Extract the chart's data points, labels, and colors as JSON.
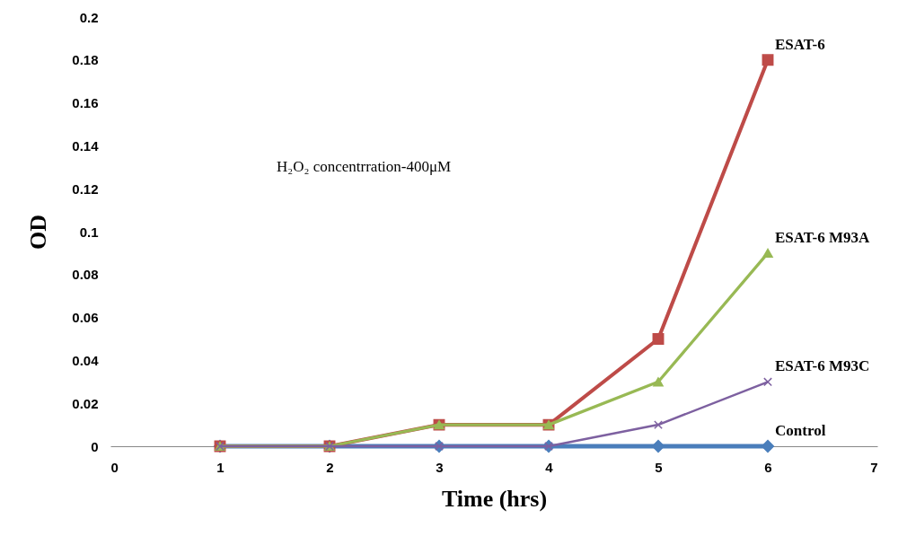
{
  "chart_data": {
    "type": "line",
    "xlabel": "Time (hrs)",
    "ylabel": "OD",
    "x": [
      1,
      2,
      3,
      4,
      5,
      6
    ],
    "series": [
      {
        "name": "Control",
        "color": "#4a7ebb",
        "marker": "diamond",
        "values": [
          0,
          0,
          0,
          0,
          0,
          0
        ]
      },
      {
        "name": "ESAT-6",
        "color": "#be4b48",
        "marker": "square",
        "values": [
          0,
          0,
          0.01,
          0.01,
          0.05,
          0.18
        ]
      },
      {
        "name": "ESAT-6 M93A",
        "color": "#98b954",
        "marker": "triangle",
        "values": [
          0,
          0,
          0.01,
          0.01,
          0.03,
          0.09
        ]
      },
      {
        "name": "ESAT-6 M93C",
        "color": "#7d60a0",
        "marker": "cross",
        "values": [
          0,
          0,
          0,
          0,
          0.01,
          0.03
        ]
      }
    ],
    "annotations": [
      "H₂O₂ concentrration-400μM"
    ],
    "xlim": [
      0,
      7
    ],
    "xticks": [
      0,
      1,
      2,
      3,
      4,
      5,
      6,
      7
    ],
    "ylim": [
      0,
      0.2
    ],
    "yticks": [
      0,
      0.02,
      0.04,
      0.06,
      0.08,
      0.1,
      0.12,
      0.14,
      0.16,
      0.18,
      0.2
    ],
    "grid": false,
    "legend": false,
    "line_style": "solid"
  }
}
